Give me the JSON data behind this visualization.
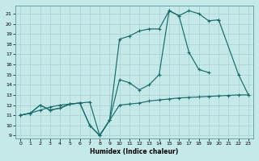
{
  "bg_color": "#c5e8e8",
  "grid_color": "#a8d0d0",
  "line_color": "#1a6b6b",
  "xlabel": "Humidex (Indice chaleur)",
  "xlim": [
    -0.5,
    23.5
  ],
  "ylim": [
    8.7,
    21.8
  ],
  "xticks": [
    0,
    1,
    2,
    3,
    4,
    5,
    6,
    7,
    8,
    9,
    10,
    11,
    12,
    13,
    14,
    15,
    16,
    17,
    18,
    19,
    20,
    21,
    22,
    23
  ],
  "yticks": [
    9,
    10,
    11,
    12,
    13,
    14,
    15,
    16,
    17,
    18,
    19,
    20,
    21
  ],
  "line_flat": {
    "x": [
      0,
      1,
      2,
      3,
      4,
      5,
      6,
      7,
      8,
      9,
      10,
      11,
      12,
      13,
      14,
      15,
      16,
      17,
      18,
      19,
      20,
      21,
      22,
      23
    ],
    "y": [
      11,
      11.2,
      11.5,
      11.8,
      12.0,
      12.1,
      12.2,
      12.3,
      9.0,
      10.5,
      12.0,
      12.1,
      12.2,
      12.4,
      12.5,
      12.6,
      12.7,
      12.75,
      12.8,
      12.85,
      12.9,
      12.95,
      13.0,
      13.0
    ]
  },
  "line_mid": {
    "x": [
      0,
      1,
      2,
      3,
      4,
      5,
      6,
      7,
      8,
      9,
      10,
      11,
      12,
      13,
      14,
      15,
      16,
      17,
      18,
      19,
      20,
      21,
      22,
      23
    ],
    "y": [
      11,
      11.2,
      12.0,
      11.5,
      11.7,
      12.1,
      12.2,
      10.0,
      9.0,
      10.5,
      14.5,
      14.2,
      13.5,
      14.0,
      15.0,
      21.3,
      20.8,
      17.2,
      15.5,
      15.2,
      null,
      null,
      null,
      null
    ]
  },
  "line_high": {
    "x": [
      0,
      1,
      2,
      3,
      4,
      5,
      6,
      7,
      8,
      9,
      10,
      11,
      12,
      13,
      14,
      15,
      16,
      17,
      18,
      19,
      20
    ],
    "y": [
      11,
      11.2,
      12.0,
      11.5,
      11.7,
      12.1,
      12.2,
      10.0,
      9.0,
      10.5,
      18.5,
      18.8,
      19.3,
      19.5,
      19.5,
      21.3,
      20.8,
      21.3,
      21.0,
      20.3,
      20.4
    ]
  },
  "line_tail": {
    "x": [
      20,
      22,
      23
    ],
    "y": [
      20.4,
      15.0,
      13.0
    ]
  }
}
